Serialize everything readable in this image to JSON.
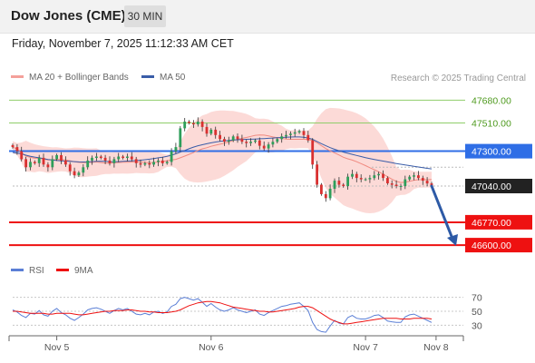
{
  "header": {
    "title": "Dow Jones (CME)",
    "timeframe": "30 MIN",
    "timestamp": "Friday, November 7, 2025 11:12:33 AM CET"
  },
  "legend": {
    "bollinger_label": "MA 20 + Bollinger Bands",
    "ma50_label": "MA 50",
    "credit": "Research © 2025 Trading Central"
  },
  "rsi_legend": {
    "rsi_label": "RSI",
    "ma_label": "9MA"
  },
  "colors": {
    "resistance_green": "#8fce6a",
    "pivot_blue": "#2f6ee6",
    "support_red": "#ee1111",
    "bollinger_fill": "#fcd4d0",
    "ma20": "#f08a80",
    "ma50": "#3a5da8",
    "candle_up": "#2e9e5a",
    "candle_down": "#d93030",
    "arrow": "#2d5aa6",
    "rsi": "#5b7fd6",
    "rsi_ma": "#ee1111"
  },
  "chart_data": {
    "type": "candlestick",
    "ylim": [
      46560,
      47750
    ],
    "price_levels": [
      {
        "label": "47680.00",
        "value": 47680,
        "role": "resistance"
      },
      {
        "label": "47510.00",
        "value": 47510,
        "role": "resistance"
      },
      {
        "label": "47300.00",
        "value": 47300,
        "role": "pivot"
      },
      {
        "label": "47040.00",
        "value": 47040,
        "role": "last_price"
      },
      {
        "label": "46770.00",
        "value": 46770,
        "role": "support"
      },
      {
        "label": "46600.00",
        "value": 46600,
        "role": "support"
      }
    ],
    "x_ticks": [
      {
        "label": "Nov 5",
        "index": 10
      },
      {
        "label": "Nov 6",
        "index": 45
      },
      {
        "label": "Nov 7",
        "index": 80
      },
      {
        "label": "Nov 8",
        "index": 96
      }
    ],
    "close": [
      47330,
      47300,
      47240,
      47180,
      47220,
      47210,
      47250,
      47200,
      47180,
      47240,
      47270,
      47230,
      47200,
      47150,
      47120,
      47140,
      47180,
      47230,
      47250,
      47260,
      47250,
      47230,
      47210,
      47240,
      47260,
      47250,
      47260,
      47240,
      47210,
      47200,
      47210,
      47200,
      47220,
      47230,
      47210,
      47220,
      47300,
      47330,
      47470,
      47520,
      47510,
      47500,
      47520,
      47480,
      47430,
      47460,
      47420,
      47390,
      47370,
      47380,
      47410,
      47390,
      47370,
      47360,
      47370,
      47380,
      47340,
      47320,
      47350,
      47370,
      47390,
      47410,
      47420,
      47430,
      47440,
      47450,
      47420,
      47380,
      47200,
      47050,
      46980,
      46950,
      47020,
      47080,
      47050,
      47040,
      47110,
      47130,
      47100,
      47090,
      47090,
      47100,
      47120,
      47130,
      47100,
      47060,
      47050,
      47040,
      47040,
      47090,
      47110,
      47120,
      47100,
      47080,
      47060,
      47040
    ],
    "ma50": [
      47290,
      47285,
      47280,
      47270,
      47262,
      47256,
      47250,
      47244,
      47238,
      47234,
      47230,
      47228,
      47226,
      47224,
      47222,
      47220,
      47219,
      47220,
      47222,
      47224,
      47225,
      47224,
      47222,
      47221,
      47222,
      47224,
      47226,
      47228,
      47230,
      47233,
      47236,
      47240,
      47245,
      47250,
      47255,
      47262,
      47270,
      47280,
      47292,
      47305,
      47318,
      47330,
      47340,
      47348,
      47355,
      47362,
      47368,
      47373,
      47377,
      47380,
      47383,
      47385,
      47387,
      47388,
      47389,
      47390,
      47392,
      47394,
      47396,
      47398,
      47400,
      47402,
      47404,
      47405,
      47406,
      47406,
      47404,
      47398,
      47388,
      47372,
      47356,
      47340,
      47326,
      47314,
      47303,
      47293,
      47284,
      47276,
      47268,
      47260,
      47252,
      47245,
      47238,
      47232,
      47226,
      47220,
      47214,
      47208,
      47202,
      47197,
      47192,
      47187,
      47182,
      47177,
      47172,
      47168
    ],
    "rsi_levels": [
      70,
      50,
      30
    ],
    "rsi_ylim": [
      15,
      85
    ],
    "rsi": [
      52,
      49,
      44,
      41,
      47,
      46,
      51,
      45,
      43,
      50,
      54,
      48,
      45,
      40,
      37,
      41,
      46,
      52,
      54,
      55,
      53,
      50,
      47,
      51,
      54,
      52,
      54,
      50,
      46,
      45,
      47,
      45,
      49,
      50,
      47,
      49,
      57,
      60,
      68,
      70,
      68,
      66,
      68,
      63,
      57,
      61,
      56,
      52,
      50,
      52,
      55,
      52,
      50,
      48,
      50,
      52,
      46,
      44,
      48,
      51,
      54,
      57,
      58,
      60,
      61,
      62,
      57,
      51,
      34,
      24,
      21,
      20,
      29,
      37,
      33,
      32,
      41,
      44,
      40,
      39,
      39,
      41,
      44,
      45,
      41,
      36,
      35,
      34,
      34,
      42,
      45,
      46,
      43,
      40,
      37,
      34
    ],
    "rsi_ma": [
      50,
      50,
      49,
      48,
      47,
      47,
      47,
      47,
      46,
      46,
      47,
      47,
      47,
      47,
      46,
      45,
      45,
      46,
      47,
      48,
      49,
      50,
      50,
      51,
      51,
      51,
      52,
      52,
      51,
      50,
      50,
      49,
      49,
      48,
      48,
      48,
      49,
      50,
      52,
      55,
      58,
      60,
      62,
      63,
      64,
      64,
      63,
      62,
      60,
      58,
      56,
      55,
      54,
      53,
      52,
      51,
      50,
      50,
      49,
      49,
      50,
      51,
      52,
      53,
      54,
      56,
      57,
      57,
      55,
      51,
      47,
      43,
      39,
      36,
      34,
      32,
      32,
      33,
      34,
      35,
      36,
      37,
      38,
      39,
      40,
      40,
      40,
      40,
      39,
      39,
      39,
      40,
      40,
      40,
      40,
      39
    ]
  }
}
